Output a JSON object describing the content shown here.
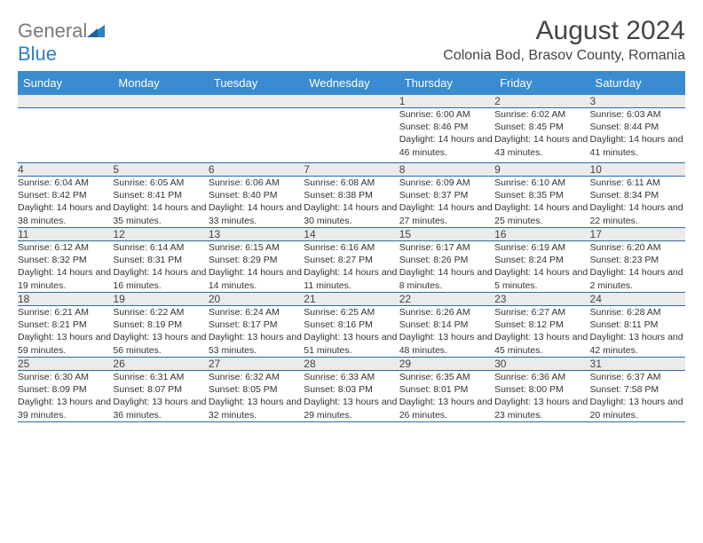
{
  "brand": {
    "word1": "General",
    "word2": "Blue"
  },
  "title": "August 2024",
  "location": "Colonia Bod, Brasov County, Romania",
  "colors": {
    "header_bg": "#3a8bd0",
    "header_text": "#ffffff",
    "daynum_bg": "#ebebeb",
    "row_border": "#2f6aa5",
    "logo_gray": "#7a7a7a",
    "logo_blue": "#2f7fc1",
    "text": "#333333"
  },
  "fonts": {
    "base": "Arial",
    "title_size_pt": 22,
    "body_size_pt": 8
  },
  "day_headers": [
    "Sunday",
    "Monday",
    "Tuesday",
    "Wednesday",
    "Thursday",
    "Friday",
    "Saturday"
  ],
  "weeks": [
    [
      {
        "empty": true
      },
      {
        "empty": true
      },
      {
        "empty": true
      },
      {
        "empty": true
      },
      {
        "day": "1",
        "sunrise": "Sunrise: 6:00 AM",
        "sunset": "Sunset: 8:46 PM",
        "daylight": "Daylight: 14 hours and 46 minutes."
      },
      {
        "day": "2",
        "sunrise": "Sunrise: 6:02 AM",
        "sunset": "Sunset: 8:45 PM",
        "daylight": "Daylight: 14 hours and 43 minutes."
      },
      {
        "day": "3",
        "sunrise": "Sunrise: 6:03 AM",
        "sunset": "Sunset: 8:44 PM",
        "daylight": "Daylight: 14 hours and 41 minutes."
      }
    ],
    [
      {
        "day": "4",
        "sunrise": "Sunrise: 6:04 AM",
        "sunset": "Sunset: 8:42 PM",
        "daylight": "Daylight: 14 hours and 38 minutes."
      },
      {
        "day": "5",
        "sunrise": "Sunrise: 6:05 AM",
        "sunset": "Sunset: 8:41 PM",
        "daylight": "Daylight: 14 hours and 35 minutes."
      },
      {
        "day": "6",
        "sunrise": "Sunrise: 6:06 AM",
        "sunset": "Sunset: 8:40 PM",
        "daylight": "Daylight: 14 hours and 33 minutes."
      },
      {
        "day": "7",
        "sunrise": "Sunrise: 6:08 AM",
        "sunset": "Sunset: 8:38 PM",
        "daylight": "Daylight: 14 hours and 30 minutes."
      },
      {
        "day": "8",
        "sunrise": "Sunrise: 6:09 AM",
        "sunset": "Sunset: 8:37 PM",
        "daylight": "Daylight: 14 hours and 27 minutes."
      },
      {
        "day": "9",
        "sunrise": "Sunrise: 6:10 AM",
        "sunset": "Sunset: 8:35 PM",
        "daylight": "Daylight: 14 hours and 25 minutes."
      },
      {
        "day": "10",
        "sunrise": "Sunrise: 6:11 AM",
        "sunset": "Sunset: 8:34 PM",
        "daylight": "Daylight: 14 hours and 22 minutes."
      }
    ],
    [
      {
        "day": "11",
        "sunrise": "Sunrise: 6:12 AM",
        "sunset": "Sunset: 8:32 PM",
        "daylight": "Daylight: 14 hours and 19 minutes."
      },
      {
        "day": "12",
        "sunrise": "Sunrise: 6:14 AM",
        "sunset": "Sunset: 8:31 PM",
        "daylight": "Daylight: 14 hours and 16 minutes."
      },
      {
        "day": "13",
        "sunrise": "Sunrise: 6:15 AM",
        "sunset": "Sunset: 8:29 PM",
        "daylight": "Daylight: 14 hours and 14 minutes."
      },
      {
        "day": "14",
        "sunrise": "Sunrise: 6:16 AM",
        "sunset": "Sunset: 8:27 PM",
        "daylight": "Daylight: 14 hours and 11 minutes."
      },
      {
        "day": "15",
        "sunrise": "Sunrise: 6:17 AM",
        "sunset": "Sunset: 8:26 PM",
        "daylight": "Daylight: 14 hours and 8 minutes."
      },
      {
        "day": "16",
        "sunrise": "Sunrise: 6:19 AM",
        "sunset": "Sunset: 8:24 PM",
        "daylight": "Daylight: 14 hours and 5 minutes."
      },
      {
        "day": "17",
        "sunrise": "Sunrise: 6:20 AM",
        "sunset": "Sunset: 8:23 PM",
        "daylight": "Daylight: 14 hours and 2 minutes."
      }
    ],
    [
      {
        "day": "18",
        "sunrise": "Sunrise: 6:21 AM",
        "sunset": "Sunset: 8:21 PM",
        "daylight": "Daylight: 13 hours and 59 minutes."
      },
      {
        "day": "19",
        "sunrise": "Sunrise: 6:22 AM",
        "sunset": "Sunset: 8:19 PM",
        "daylight": "Daylight: 13 hours and 56 minutes."
      },
      {
        "day": "20",
        "sunrise": "Sunrise: 6:24 AM",
        "sunset": "Sunset: 8:17 PM",
        "daylight": "Daylight: 13 hours and 53 minutes."
      },
      {
        "day": "21",
        "sunrise": "Sunrise: 6:25 AM",
        "sunset": "Sunset: 8:16 PM",
        "daylight": "Daylight: 13 hours and 51 minutes."
      },
      {
        "day": "22",
        "sunrise": "Sunrise: 6:26 AM",
        "sunset": "Sunset: 8:14 PM",
        "daylight": "Daylight: 13 hours and 48 minutes."
      },
      {
        "day": "23",
        "sunrise": "Sunrise: 6:27 AM",
        "sunset": "Sunset: 8:12 PM",
        "daylight": "Daylight: 13 hours and 45 minutes."
      },
      {
        "day": "24",
        "sunrise": "Sunrise: 6:28 AM",
        "sunset": "Sunset: 8:11 PM",
        "daylight": "Daylight: 13 hours and 42 minutes."
      }
    ],
    [
      {
        "day": "25",
        "sunrise": "Sunrise: 6:30 AM",
        "sunset": "Sunset: 8:09 PM",
        "daylight": "Daylight: 13 hours and 39 minutes."
      },
      {
        "day": "26",
        "sunrise": "Sunrise: 6:31 AM",
        "sunset": "Sunset: 8:07 PM",
        "daylight": "Daylight: 13 hours and 36 minutes."
      },
      {
        "day": "27",
        "sunrise": "Sunrise: 6:32 AM",
        "sunset": "Sunset: 8:05 PM",
        "daylight": "Daylight: 13 hours and 32 minutes."
      },
      {
        "day": "28",
        "sunrise": "Sunrise: 6:33 AM",
        "sunset": "Sunset: 8:03 PM",
        "daylight": "Daylight: 13 hours and 29 minutes."
      },
      {
        "day": "29",
        "sunrise": "Sunrise: 6:35 AM",
        "sunset": "Sunset: 8:01 PM",
        "daylight": "Daylight: 13 hours and 26 minutes."
      },
      {
        "day": "30",
        "sunrise": "Sunrise: 6:36 AM",
        "sunset": "Sunset: 8:00 PM",
        "daylight": "Daylight: 13 hours and 23 minutes."
      },
      {
        "day": "31",
        "sunrise": "Sunrise: 6:37 AM",
        "sunset": "Sunset: 7:58 PM",
        "daylight": "Daylight: 13 hours and 20 minutes."
      }
    ]
  ]
}
